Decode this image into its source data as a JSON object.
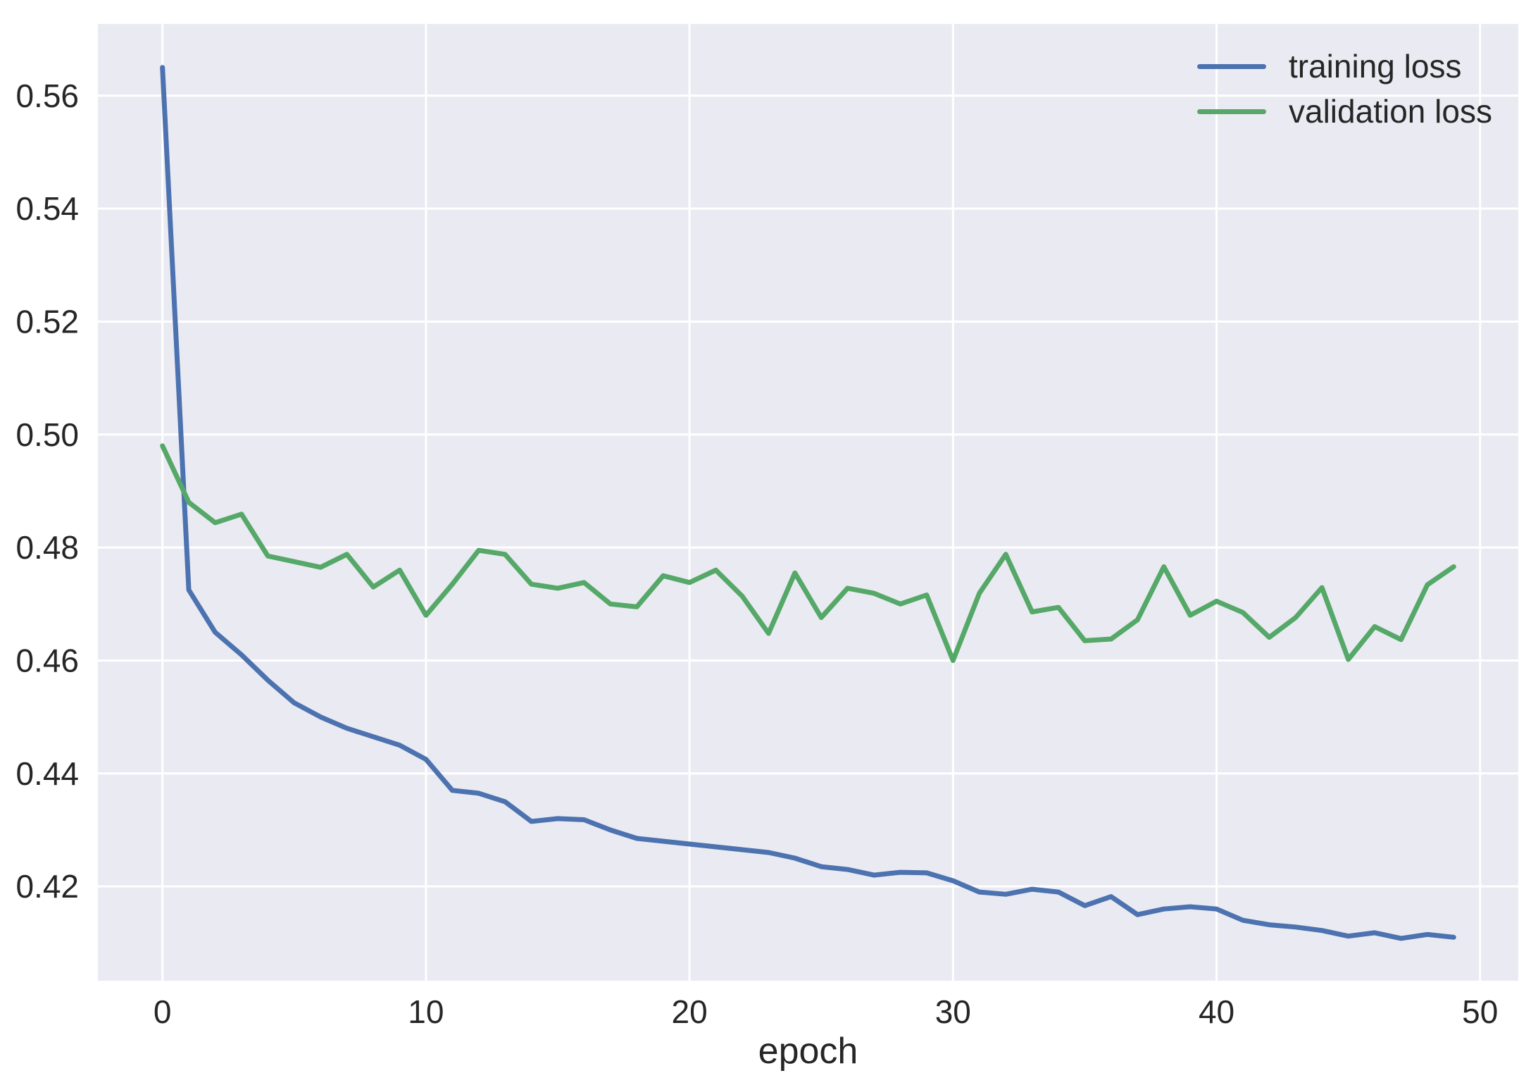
{
  "chart_data": {
    "type": "line",
    "title": "",
    "xlabel": "epoch",
    "ylabel": "",
    "grid": true,
    "legend_position": "upper right",
    "plot_bg": "#EAEAF2",
    "grid_color": "#FFFFFF",
    "text_color": "#262626",
    "xlim": [
      -2.45,
      51.45
    ],
    "ylim": [
      0.4033,
      0.5727
    ],
    "x_ticks": [
      0,
      10,
      20,
      30,
      40,
      50
    ],
    "x_tick_labels": [
      "0",
      "10",
      "20",
      "30",
      "40",
      "50"
    ],
    "y_ticks": [
      0.42,
      0.44,
      0.46,
      0.48,
      0.5,
      0.52,
      0.54,
      0.56
    ],
    "y_tick_labels": [
      "0.42",
      "0.44",
      "0.46",
      "0.48",
      "0.50",
      "0.52",
      "0.54",
      "0.56"
    ],
    "x": [
      0,
      1,
      2,
      3,
      4,
      5,
      6,
      7,
      8,
      9,
      10,
      11,
      12,
      13,
      14,
      15,
      16,
      17,
      18,
      19,
      20,
      21,
      22,
      23,
      24,
      25,
      26,
      27,
      28,
      29,
      30,
      31,
      32,
      33,
      34,
      35,
      36,
      37,
      38,
      39,
      40,
      41,
      42,
      43,
      44,
      45,
      46,
      47,
      48,
      49
    ],
    "series": [
      {
        "name": "training loss",
        "color": "#4C72B0",
        "values": [
          0.565,
          0.4725,
          0.465,
          0.461,
          0.4565,
          0.4525,
          0.45,
          0.448,
          0.4465,
          0.445,
          0.4425,
          0.437,
          0.4365,
          0.435,
          0.4315,
          0.432,
          0.4318,
          0.43,
          0.4285,
          0.428,
          0.4275,
          0.427,
          0.4265,
          0.426,
          0.425,
          0.4235,
          0.423,
          0.422,
          0.4225,
          0.4224,
          0.421,
          0.419,
          0.4186,
          0.4195,
          0.419,
          0.4166,
          0.4182,
          0.415,
          0.416,
          0.4164,
          0.416,
          0.414,
          0.4132,
          0.4128,
          0.4122,
          0.4112,
          0.4118,
          0.4108,
          0.4115,
          0.411
        ]
      },
      {
        "name": "validation loss",
        "color": "#55A868",
        "values": [
          0.498,
          0.488,
          0.4844,
          0.4859,
          0.4785,
          0.4775,
          0.4765,
          0.4788,
          0.473,
          0.476,
          0.468,
          0.4735,
          0.4795,
          0.4788,
          0.4735,
          0.4728,
          0.4738,
          0.47,
          0.4695,
          0.475,
          0.4738,
          0.476,
          0.4714,
          0.4648,
          0.4755,
          0.4676,
          0.4728,
          0.4719,
          0.47,
          0.4716,
          0.46,
          0.4719,
          0.4788,
          0.4686,
          0.4694,
          0.4635,
          0.4638,
          0.4672,
          0.4766,
          0.468,
          0.4705,
          0.4685,
          0.4641,
          0.4676,
          0.4729,
          0.4602,
          0.466,
          0.4637,
          0.4734,
          0.4766
        ]
      }
    ]
  },
  "legend": {
    "items": [
      {
        "label": "training loss"
      },
      {
        "label": "validation loss"
      }
    ]
  }
}
